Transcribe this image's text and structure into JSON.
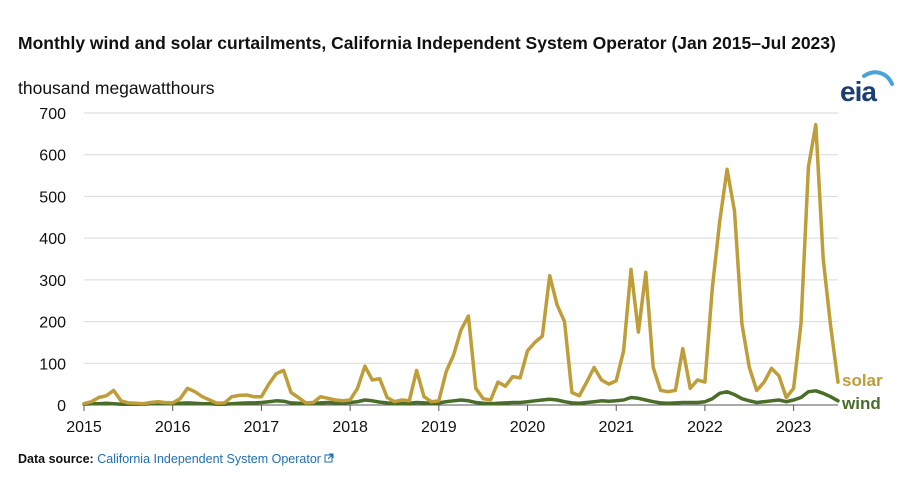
{
  "title": "Monthly wind and solar curtailments, California Independent System Operator (Jan 2015–Jul 2023)",
  "units_label": "thousand megawatthours",
  "logo_text": "eia",
  "source": {
    "label": "Data source:",
    "link_text": "California Independent System Operator",
    "link_icon": "external-link-icon"
  },
  "colors": {
    "solar": "#bf9d38",
    "wind": "#4a6e2a",
    "grid": "#d9d9d9",
    "axis": "#555555"
  },
  "chart_data": {
    "type": "line",
    "title": "Monthly wind and solar curtailments, California Independent System Operator (Jan 2015–Jul 2023)",
    "ylabel": "thousand megawatthours",
    "xlabel": "",
    "ylim": [
      0,
      700
    ],
    "yticks": [
      0,
      100,
      200,
      300,
      400,
      500,
      600,
      700
    ],
    "xticks": [
      "2015",
      "2016",
      "2017",
      "2018",
      "2019",
      "2020",
      "2021",
      "2022",
      "2023"
    ],
    "x_start": "2015-01",
    "grid": true,
    "legend": "inline labels at line ends (right)",
    "series": [
      {
        "name": "solar",
        "values": [
          3,
          8,
          18,
          22,
          35,
          10,
          5,
          4,
          3,
          6,
          8,
          6,
          5,
          15,
          40,
          32,
          20,
          12,
          4,
          5,
          20,
          23,
          24,
          20,
          20,
          50,
          75,
          83,
          30,
          18,
          5,
          6,
          20,
          16,
          12,
          10,
          12,
          40,
          93,
          60,
          63,
          18,
          8,
          12,
          10,
          83,
          20,
          8,
          10,
          80,
          120,
          180,
          213,
          40,
          15,
          12,
          55,
          45,
          68,
          65,
          130,
          150,
          165,
          310,
          240,
          200,
          30,
          22,
          55,
          90,
          60,
          50,
          58,
          130,
          325,
          175,
          318,
          90,
          35,
          32,
          35,
          135,
          40,
          60,
          55,
          280,
          440,
          565,
          465,
          195,
          90,
          35,
          55,
          88,
          70,
          18,
          40,
          195,
          570,
          672,
          350,
          190,
          55
        ]
      },
      {
        "name": "wind",
        "values": [
          2,
          3,
          3,
          4,
          3,
          2,
          2,
          2,
          2,
          3,
          3,
          3,
          3,
          4,
          5,
          4,
          3,
          3,
          2,
          2,
          3,
          4,
          5,
          5,
          6,
          8,
          10,
          9,
          5,
          4,
          3,
          3,
          5,
          6,
          5,
          5,
          6,
          8,
          12,
          10,
          7,
          5,
          3,
          3,
          4,
          6,
          5,
          4,
          5,
          8,
          10,
          12,
          10,
          6,
          4,
          3,
          4,
          5,
          6,
          6,
          8,
          10,
          12,
          14,
          12,
          8,
          5,
          4,
          6,
          8,
          10,
          9,
          10,
          12,
          18,
          16,
          12,
          8,
          5,
          4,
          5,
          6,
          6,
          6,
          8,
          15,
          28,
          32,
          25,
          15,
          10,
          6,
          8,
          10,
          12,
          8,
          12,
          18,
          32,
          34,
          28,
          20,
          10
        ]
      }
    ]
  }
}
